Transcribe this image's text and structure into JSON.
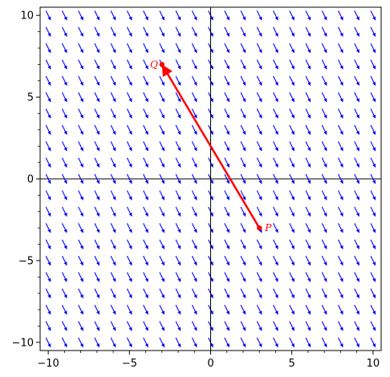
{
  "chart_data": {
    "type": "vector_field",
    "title": "",
    "xlabel": "",
    "ylabel": "",
    "xlim": [
      -10.5,
      10.5
    ],
    "ylim": [
      -10.5,
      10.5
    ],
    "x_ticks": [
      -10,
      -5,
      0,
      5,
      10
    ],
    "y_ticks": [
      -10,
      -5,
      0,
      5,
      10
    ],
    "x_tick_labels": [
      "−10",
      "−5",
      "0",
      "5",
      "10"
    ],
    "y_tick_labels": [
      "−10",
      "−5",
      "0",
      "5",
      "10"
    ],
    "minor_ticks": true,
    "grid": false,
    "axes_through_origin": true,
    "field": {
      "direction": [
        1,
        -2
      ],
      "grid_x_range": [
        -10,
        10
      ],
      "grid_y_range": [
        -10,
        10
      ],
      "grid_step": 1,
      "color": "#0000ff"
    },
    "vector": {
      "from": {
        "label": "P",
        "x": 3,
        "y": -3
      },
      "to": {
        "label": "Q",
        "x": -3,
        "y": 7
      },
      "color": "#ff0000"
    }
  }
}
